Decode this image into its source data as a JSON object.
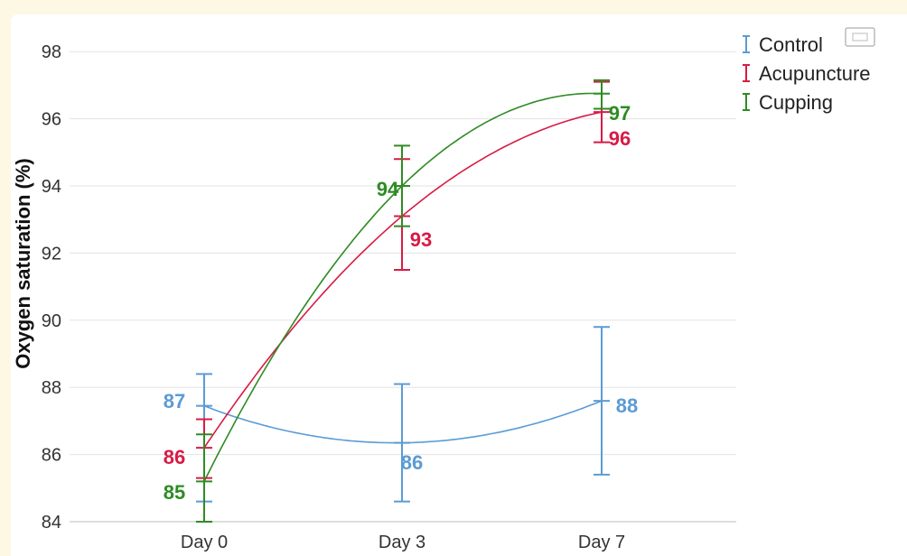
{
  "chart_data": {
    "type": "line",
    "ylabel": "Oxygen saturation (%)",
    "xlabel": "",
    "categories": [
      "Day 0",
      "Day 3",
      "Day 7"
    ],
    "ylim": [
      84,
      99
    ],
    "yticks": [
      84,
      86,
      88,
      90,
      92,
      94,
      96,
      98
    ],
    "grid": true,
    "legend_placement": "top-right",
    "series": [
      {
        "name": "Control",
        "color": "#5b9bd5",
        "values": [
          87.45,
          86.35,
          87.6
        ],
        "error_low": [
          84.6,
          84.6,
          85.4
        ],
        "error_high": [
          88.4,
          88.1,
          89.8
        ],
        "labels": [
          "87",
          "86",
          "88"
        ]
      },
      {
        "name": "Acupuncture",
        "color": "#d81b45",
        "values": [
          86.2,
          93.1,
          96.2
        ],
        "error_low": [
          85.3,
          91.5,
          95.3
        ],
        "error_high": [
          87.05,
          94.8,
          97.1
        ],
        "labels": [
          "86",
          "93",
          "96"
        ]
      },
      {
        "name": "Cupping",
        "color": "#2e8b23",
        "values": [
          85.2,
          94.0,
          96.75
        ],
        "error_low": [
          84.0,
          92.8,
          96.3
        ],
        "error_high": [
          86.6,
          95.2,
          97.15
        ],
        "labels": [
          "85",
          "94",
          "97"
        ]
      }
    ]
  }
}
